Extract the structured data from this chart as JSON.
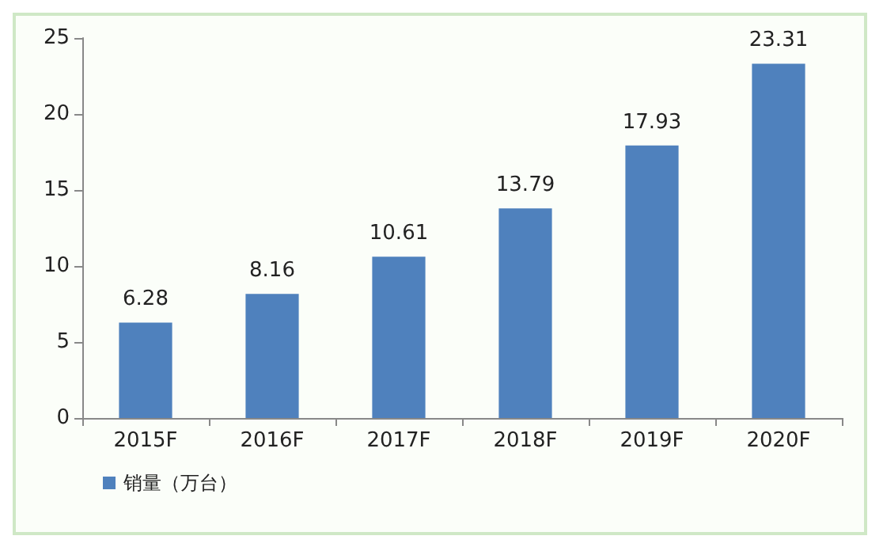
{
  "chart_data": {
    "type": "bar",
    "categories": [
      "2015F",
      "2016F",
      "2017F",
      "2018F",
      "2019F",
      "2020F"
    ],
    "series": [
      {
        "name": "销量（万台）",
        "color": "#4f81bd",
        "values": [
          6.28,
          8.16,
          10.61,
          13.79,
          17.93,
          23.31
        ]
      }
    ],
    "ylim": [
      0,
      25
    ],
    "yticks": [
      0,
      5,
      10,
      15,
      20,
      25
    ],
    "grid": false,
    "legend": "bottom left",
    "data_labels": true
  }
}
